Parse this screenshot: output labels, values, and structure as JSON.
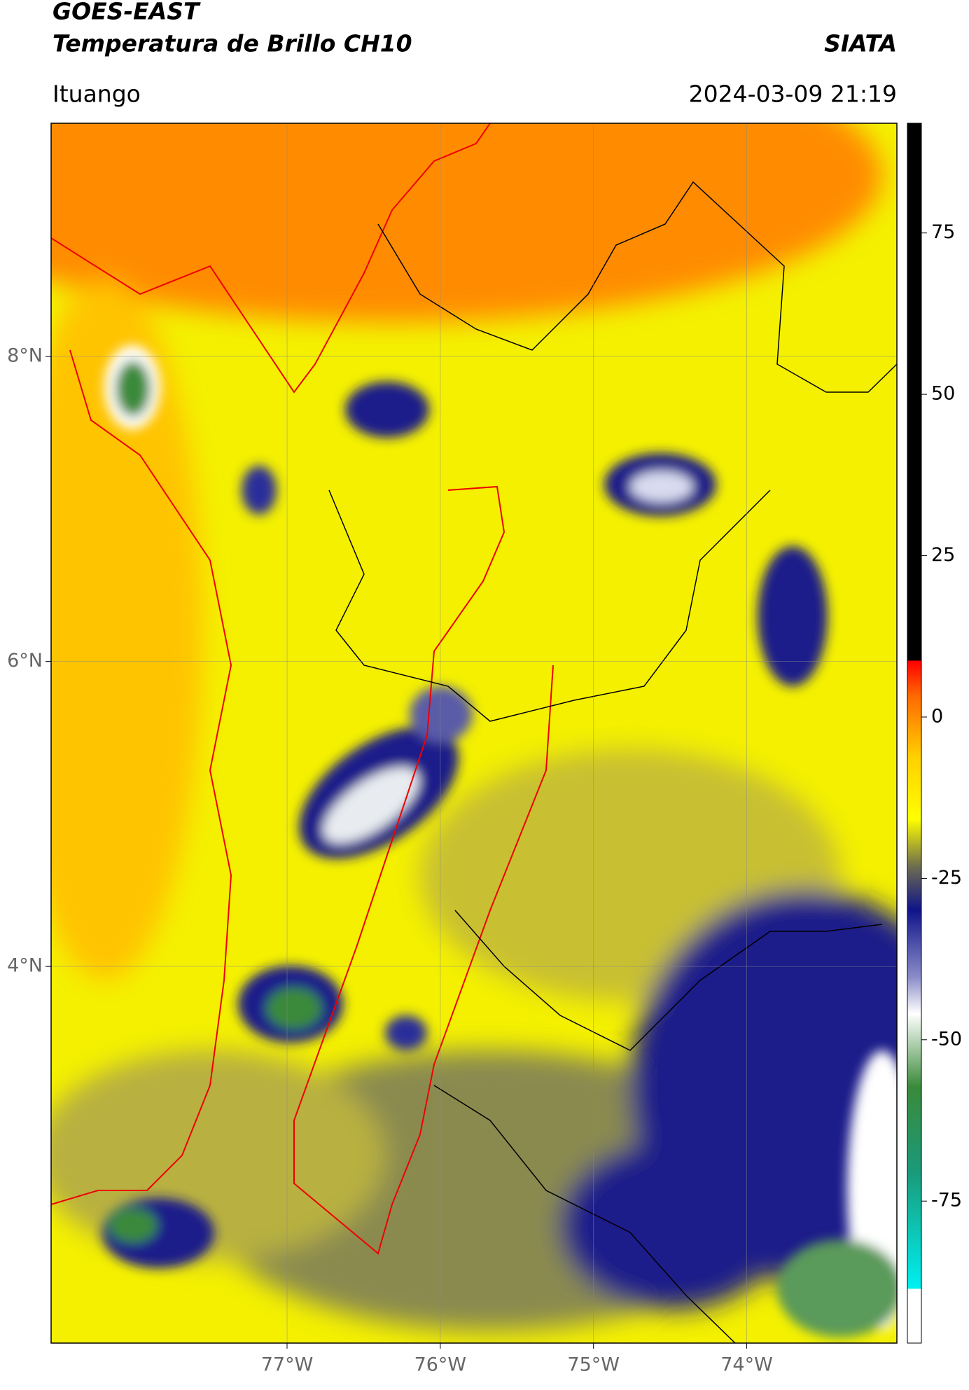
{
  "header": {
    "title": "GOES-EAST",
    "subtitle": "Temperatura de Brillo CH10",
    "source": "SIATA",
    "location": "Ituango",
    "datetime": "2024-03-09 21:19"
  },
  "map": {
    "xlim": [
      -78.54,
      -73.02
    ],
    "ylim": [
      1.53,
      9.53
    ],
    "xticks": [
      {
        "value": -77,
        "label": "77°W"
      },
      {
        "value": -76,
        "label": "76°W"
      },
      {
        "value": -75,
        "label": "75°W"
      },
      {
        "value": -74,
        "label": "74°W"
      }
    ],
    "yticks": [
      {
        "value": 4,
        "label": "4°N"
      },
      {
        "value": 6,
        "label": "6°N"
      },
      {
        "value": 8,
        "label": "8°N"
      }
    ],
    "grid": true
  },
  "colorbar": {
    "lim": [
      -97,
      92
    ],
    "ticks": [
      -75,
      -50,
      -25,
      0,
      25,
      50,
      75
    ]
  }
}
